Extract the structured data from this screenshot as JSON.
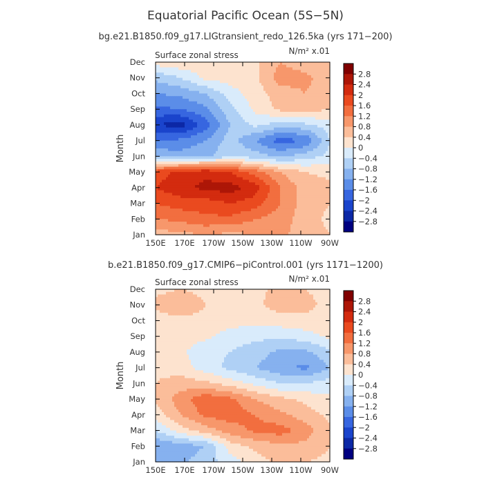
{
  "title": "Equatorial Pacific Ocean (5S−5N)",
  "colors": {
    "background": "#ffffff",
    "frame": "#000000",
    "text": "#333333"
  },
  "colorbar": {
    "levels": [
      "2.8",
      "2.4",
      "2",
      "1.6",
      "1.2",
      "0.8",
      "0.4",
      "0",
      "−0.4",
      "−0.8",
      "−1.2",
      "−1.6",
      "−2",
      "−2.4",
      "−2.8"
    ],
    "colors": [
      "#800000",
      "#ad1607",
      "#d32b0f",
      "#ea4a1f",
      "#f26e3f",
      "#f7976b",
      "#fbbd9a",
      "#fde3cf",
      "#d9ebfb",
      "#afd0f5",
      "#86b1ef",
      "#5b8de8",
      "#3766e0",
      "#1a44cc",
      "#0c28a6",
      "#000080"
    ]
  },
  "chart_data": [
    {
      "type": "heatmap",
      "subtitle": "bg.e21.B1850.f09_g17.LIGtransient_redo_126.5ka (yrs 171−200)",
      "left_label": "Surface zonal stress",
      "right_label": "N/m² x.01",
      "xlabel": "",
      "ylabel": "Month",
      "x_ticks": [
        "150E",
        "170E",
        "170W",
        "150W",
        "130W",
        "110W",
        "90W"
      ],
      "y_ticks": [
        "Jan",
        "Feb",
        "Mar",
        "Apr",
        "May",
        "Jun",
        "Jul",
        "Aug",
        "Sep",
        "Oct",
        "Nov",
        "Dec"
      ],
      "z_unit": "N/m^2 x.01",
      "z_grid": [
        [
          0.6,
          0.7,
          0.8,
          0.7,
          0.8,
          0.9,
          0.6,
          0.4
        ],
        [
          1.2,
          1.3,
          1.5,
          1.5,
          1.2,
          1.0,
          0.6,
          0.3
        ],
        [
          1.6,
          1.8,
          1.8,
          2.0,
          1.8,
          1.2,
          0.6,
          0.4
        ],
        [
          2.0,
          2.3,
          2.5,
          2.6,
          2.2,
          1.2,
          0.6,
          0.5
        ],
        [
          1.8,
          2.1,
          2.3,
          2.0,
          1.4,
          0.8,
          0.4,
          0.3
        ],
        [
          -0.9,
          -1.0,
          -0.9,
          -0.5,
          -0.6,
          -0.9,
          -0.6,
          -0.3
        ],
        [
          -1.6,
          -1.5,
          -1.2,
          -0.6,
          -1.2,
          -1.8,
          -1.6,
          -0.4
        ],
        [
          -2.4,
          -2.6,
          -1.8,
          -0.8,
          -0.3,
          -0.6,
          -0.5,
          -0.2
        ],
        [
          -1.7,
          -1.6,
          -1.3,
          -0.5,
          0.1,
          0.5,
          0.6,
          0.4
        ],
        [
          -1.2,
          -1.1,
          -0.8,
          -0.2,
          0.2,
          0.6,
          0.8,
          0.6
        ],
        [
          -0.7,
          -0.4,
          0.1,
          0.2,
          0.3,
          1.0,
          0.9,
          0.6
        ],
        [
          0.2,
          0.3,
          0.2,
          0.1,
          0.3,
          0.8,
          0.6,
          0.4
        ]
      ]
    },
    {
      "type": "heatmap",
      "subtitle": "b.e21.B1850.f09_g17.CMIP6−piControl.001 (yrs 1171−1200)",
      "left_label": "Surface zonal stress",
      "right_label": "N/m² x.01",
      "xlabel": "",
      "ylabel": "Month",
      "x_ticks": [
        "150E",
        "170E",
        "170W",
        "150W",
        "130W",
        "110W",
        "90W"
      ],
      "y_ticks": [
        "Jan",
        "Feb",
        "Mar",
        "Apr",
        "May",
        "Jun",
        "Jul",
        "Aug",
        "Sep",
        "Oct",
        "Nov",
        "Dec"
      ],
      "z_unit": "N/m^2 x.01",
      "z_grid": [
        [
          -1.0,
          -0.9,
          -0.6,
          -0.2,
          0.2,
          0.5,
          0.4,
          0.3
        ],
        [
          -1.2,
          -1.0,
          -0.8,
          0.2,
          0.5,
          0.7,
          0.7,
          0.4
        ],
        [
          -0.4,
          0.2,
          0.6,
          1.0,
          1.3,
          1.4,
          1.0,
          0.5
        ],
        [
          0.2,
          0.8,
          1.3,
          1.4,
          1.2,
          0.9,
          0.6,
          0.3
        ],
        [
          0.5,
          1.0,
          1.5,
          1.3,
          0.8,
          0.5,
          0.3,
          0.1
        ],
        [
          0.4,
          0.6,
          0.5,
          0.2,
          -0.1,
          -0.4,
          -0.4,
          -0.2
        ],
        [
          0.3,
          0.2,
          -0.2,
          -0.5,
          -0.8,
          -1.1,
          -1.3,
          -0.8
        ],
        [
          0.2,
          0.1,
          -0.3,
          -0.4,
          -0.6,
          -0.9,
          -0.9,
          -0.5
        ],
        [
          0.2,
          0.2,
          0.1,
          -0.2,
          -0.3,
          -0.3,
          -0.2,
          0.1
        ],
        [
          0.2,
          0.3,
          0.3,
          0.2,
          0.1,
          0.2,
          0.3,
          0.3
        ],
        [
          0.5,
          0.7,
          0.4,
          0.2,
          0.3,
          0.6,
          0.5,
          0.3
        ],
        [
          0.3,
          0.4,
          0.3,
          0.2,
          0.3,
          0.5,
          0.4,
          0.3
        ]
      ]
    }
  ]
}
